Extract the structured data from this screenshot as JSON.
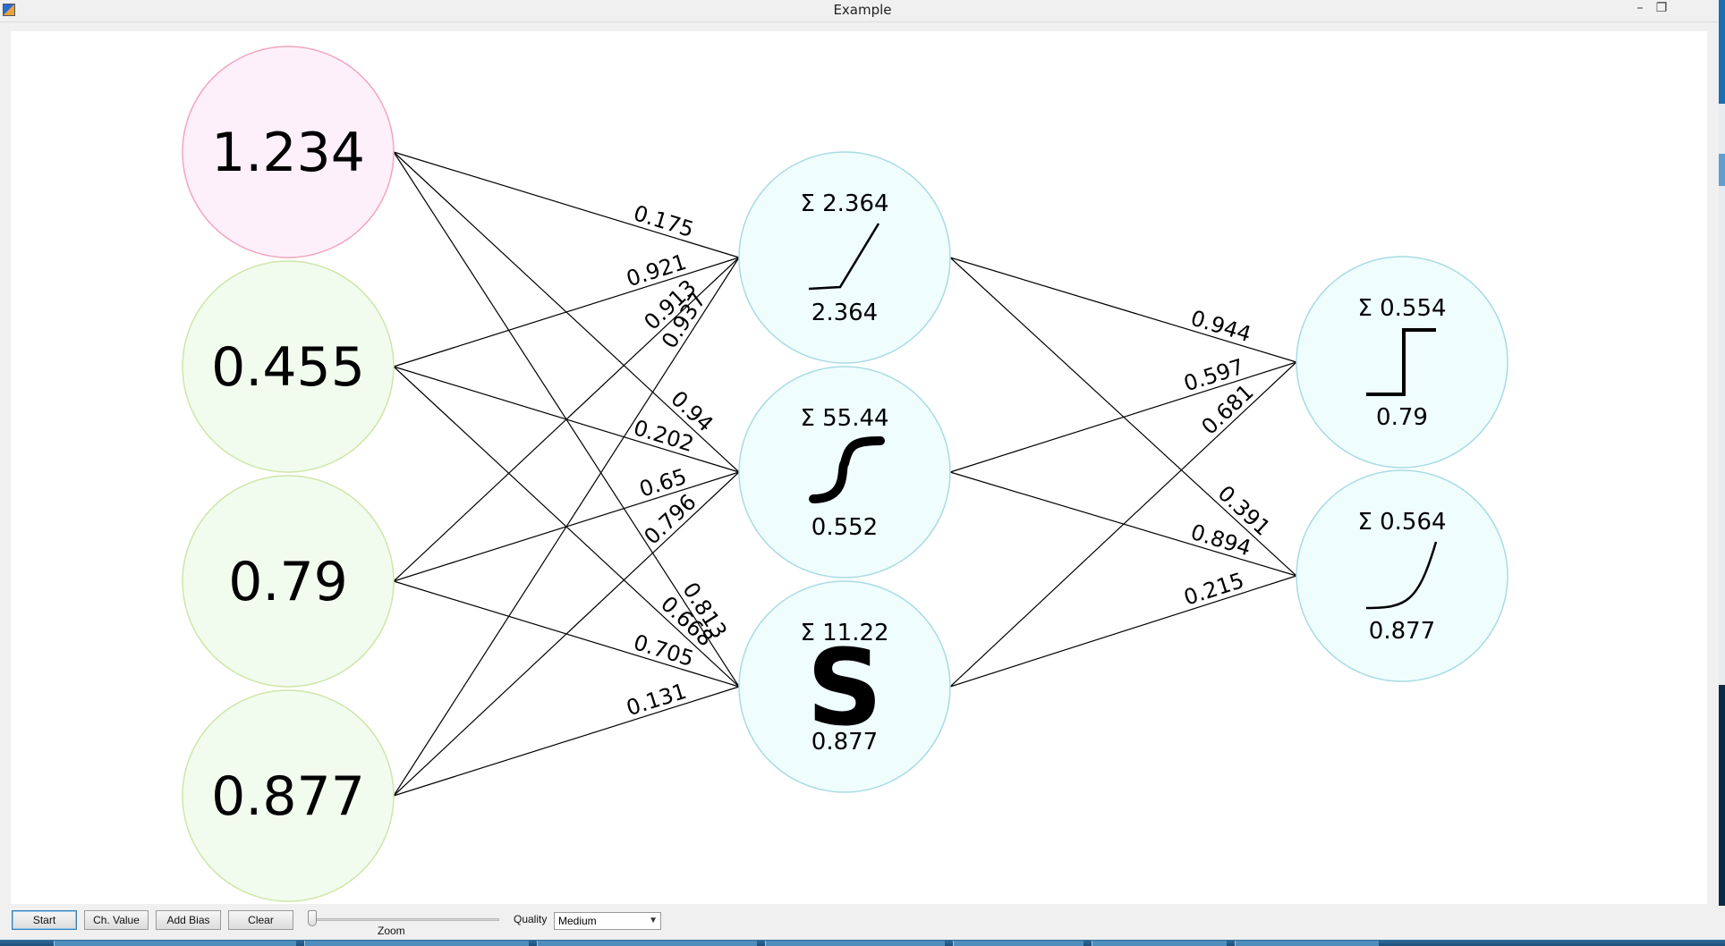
{
  "window": {
    "title": "Example",
    "minimize_glyph": "–",
    "restore_glyph": "❐"
  },
  "network": {
    "inputs": [
      "1.234",
      "0.455",
      "0.79",
      "0.877"
    ],
    "hidden": [
      {
        "sum": "Σ 2.364",
        "output": "2.364",
        "activation": "relu-icon"
      },
      {
        "sum": "Σ 55.44",
        "output": "0.552",
        "activation": "sigmoid-icon"
      },
      {
        "sum": "Σ 11.22",
        "output": "0.877",
        "activation": "s-curve-icon"
      }
    ],
    "outputs": [
      {
        "sum": "Σ 0.554",
        "output": "0.79",
        "activation": "step-icon"
      },
      {
        "sum": "Σ 0.564",
        "output": "0.877",
        "activation": "exponential-icon"
      }
    ],
    "weights_input_hidden": [
      [
        "0.175",
        "0.94",
        "0.813"
      ],
      [
        "0.921",
        "0.202",
        "0.668"
      ],
      [
        "0.913",
        "0.65",
        "0.705"
      ],
      [
        "0.937",
        "0.796",
        "0.131"
      ]
    ],
    "weights_hidden_output": [
      [
        "0.944",
        "0.391"
      ],
      [
        "0.597",
        "0.894"
      ],
      [
        "0.681",
        "0.215"
      ]
    ],
    "colors": {
      "bias_fill": "#fdf0fb",
      "bias_stroke": "#f2a6bf",
      "input_fill": "#f1fcee",
      "input_stroke": "#cfe6a8",
      "neuron_fill": "#effdfd",
      "neuron_stroke": "#a9dbe3",
      "edge": "#000000"
    }
  },
  "toolbar": {
    "start_label": "Start",
    "ch_value_label": "Ch. Value",
    "add_bias_label": "Add Bias",
    "clear_label": "Clear",
    "zoom_label": "Zoom",
    "zoom_level": 0,
    "quality_label": "Quality",
    "quality_value": "Medium"
  }
}
